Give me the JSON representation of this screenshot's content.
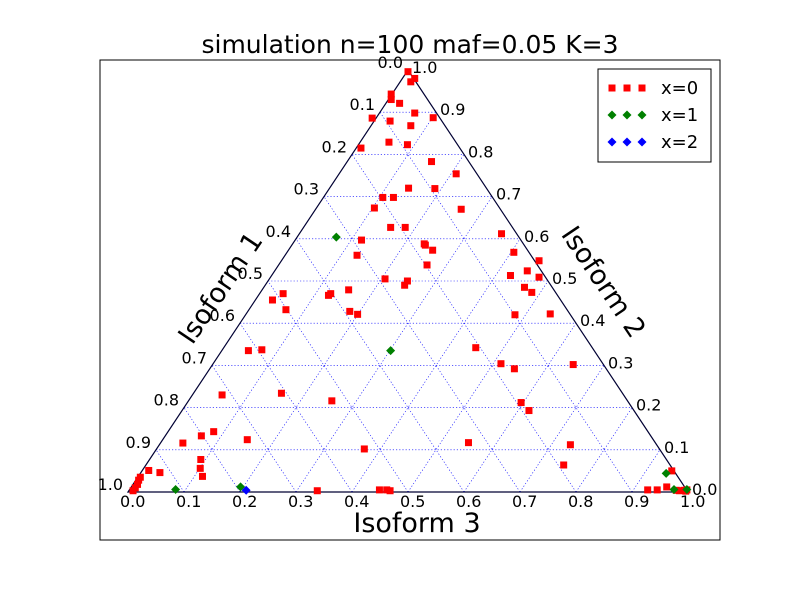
{
  "chart_data": {
    "type": "scatter",
    "projection": "ternary",
    "title": "simulation n=100 maf=0.05 K=3",
    "axes": {
      "left": {
        "label": "Isoform 1",
        "ticks": [
          "0.0",
          "0.1",
          "0.2",
          "0.3",
          "0.4",
          "0.5",
          "0.6",
          "0.7",
          "0.8",
          "0.9",
          "1.0"
        ]
      },
      "right": {
        "label": "Isoform 2",
        "ticks": [
          "1.0",
          "0.9",
          "0.8",
          "0.7",
          "0.6",
          "0.5",
          "0.4",
          "0.3",
          "0.2",
          "0.1",
          "0.0"
        ]
      },
      "bottom": {
        "label": "Isoform 3",
        "ticks": [
          "0.0",
          "0.1",
          "0.2",
          "0.3",
          "0.4",
          "0.5",
          "0.6",
          "0.7",
          "0.8",
          "0.9",
          "1.0"
        ]
      }
    },
    "grid": true,
    "legend_position": "top-right",
    "colors": {
      "x0": "#ff0000",
      "x1": "#008000",
      "x2": "#0000ff",
      "grid": "#0000ff",
      "frame": "#000000"
    },
    "series": [
      {
        "name": "x=0",
        "marker": "square",
        "color": "#ff0000",
        "points_xy": [
          [
            0.5,
            0.996
          ],
          [
            0.512,
            0.98
          ],
          [
            0.505,
            0.972
          ],
          [
            0.47,
            0.943
          ],
          [
            0.47,
            0.93
          ],
          [
            0.485,
            0.921
          ],
          [
            0.512,
            0.898
          ],
          [
            0.545,
            0.887
          ],
          [
            0.505,
            0.868
          ],
          [
            0.468,
            0.879
          ],
          [
            0.436,
            0.886
          ],
          [
            0.466,
            0.829
          ],
          [
            0.499,
            0.823
          ],
          [
            0.416,
            0.815
          ],
          [
            0.542,
            0.783
          ],
          [
            0.586,
            0.754
          ],
          [
            0.548,
            0.719
          ],
          [
            0.501,
            0.72
          ],
          [
            0.474,
            0.698
          ],
          [
            0.455,
            0.698
          ],
          [
            0.44,
            0.673
          ],
          [
            0.595,
            0.67
          ],
          [
            0.469,
            0.627
          ],
          [
            0.495,
            0.627
          ],
          [
            0.667,
            0.612
          ],
          [
            0.417,
            0.597
          ],
          [
            0.531,
            0.585
          ],
          [
            0.544,
            0.573
          ],
          [
            0.529,
            0.588
          ],
          [
            0.689,
            0.568
          ],
          [
            0.409,
            0.561
          ],
          [
            0.534,
            0.538
          ],
          [
            0.734,
            0.548
          ],
          [
            0.713,
            0.524
          ],
          [
            0.683,
            0.513
          ],
          [
            0.734,
            0.509
          ],
          [
            0.459,
            0.505
          ],
          [
            0.499,
            0.5
          ],
          [
            0.494,
            0.49
          ],
          [
            0.708,
            0.485
          ],
          [
            0.362,
            0.47
          ],
          [
            0.358,
            0.466
          ],
          [
            0.394,
            0.479
          ],
          [
            0.721,
            0.473
          ],
          [
            0.277,
            0.47
          ],
          [
            0.258,
            0.455
          ],
          [
            0.282,
            0.432
          ],
          [
            0.396,
            0.428
          ],
          [
            0.754,
            0.422
          ],
          [
            0.41,
            0.421
          ],
          [
            0.691,
            0.42
          ],
          [
            0.621,
            0.342
          ],
          [
            0.239,
            0.337
          ],
          [
            0.215,
            0.335
          ],
          [
            0.666,
            0.304
          ],
          [
            0.795,
            0.302
          ],
          [
            0.69,
            0.292
          ],
          [
            0.168,
            0.23
          ],
          [
            0.274,
            0.234
          ],
          [
            0.364,
            0.216
          ],
          [
            0.702,
            0.212
          ],
          [
            0.716,
            0.193
          ],
          [
            0.153,
            0.143
          ],
          [
            0.131,
            0.133
          ],
          [
            0.213,
            0.124
          ],
          [
            0.608,
            0.117
          ],
          [
            0.422,
            0.102
          ],
          [
            0.79,
            0.112
          ],
          [
            0.098,
            0.116
          ],
          [
            0.13,
            0.077
          ],
          [
            0.129,
            0.056
          ],
          [
            0.778,
            0.064
          ],
          [
            0.057,
            0.046
          ],
          [
            0.037,
            0.051
          ],
          [
            0.022,
            0.035
          ],
          [
            0.133,
            0.037
          ],
          [
            0.971,
            0.05
          ],
          [
            0.019,
            0.028
          ],
          [
            0.017,
            0.018
          ],
          [
            0.013,
            0.01
          ],
          [
            0.009,
            0.003
          ],
          [
            0.338,
            0.003
          ],
          [
            0.449,
            0.005
          ],
          [
            0.462,
            0.005
          ],
          [
            0.468,
            0.003
          ],
          [
            0.928,
            0.005
          ],
          [
            0.945,
            0.005
          ],
          [
            0.962,
            0.012
          ],
          [
            0.979,
            0.004
          ],
          [
            0.985,
            0.003
          ],
          [
            0.993,
            0.004
          ],
          [
            0.996,
            0.002
          ],
          [
            0.998,
            0.005
          ]
        ]
      },
      {
        "name": "x=1",
        "marker": "diamond",
        "color": "#008000",
        "points_xy": [
          [
            0.372,
            0.604
          ],
          [
            0.469,
            0.335
          ],
          [
            0.085,
            0.006
          ],
          [
            0.201,
            0.012
          ],
          [
            0.961,
            0.044
          ],
          [
            0.975,
            0.006
          ],
          [
            0.998,
            0.006
          ]
        ]
      },
      {
        "name": "x=2",
        "marker": "diamond",
        "color": "#0000ff",
        "points_xy": [
          [
            0.211,
            0.004
          ]
        ]
      }
    ]
  }
}
